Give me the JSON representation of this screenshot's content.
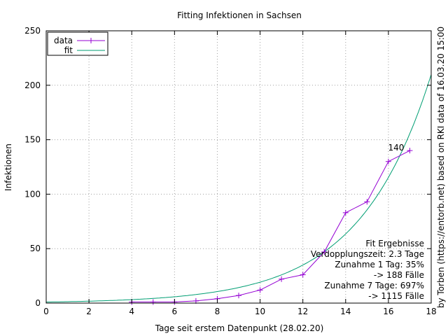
{
  "chart_data": {
    "type": "line",
    "title": "Fitting Infektionen in Sachsen",
    "xlabel": "Tage seit erstem Datenpunkt (28.02.20)",
    "ylabel": "Infektionen",
    "side_label": "by Torben (https://entorb.net) based on RKI data of 16.03.20 15:00",
    "xlim": [
      0,
      18
    ],
    "ylim": [
      0,
      250
    ],
    "x_ticks": [
      0,
      2,
      4,
      6,
      8,
      10,
      12,
      14,
      16,
      18
    ],
    "y_ticks": [
      0,
      50,
      100,
      150,
      200,
      250
    ],
    "grid": true,
    "legend_position": "top-left",
    "series": [
      {
        "name": "data",
        "color": "#9400d3",
        "marker": "plus",
        "x": [
          4,
          5,
          6,
          7,
          8,
          9,
          10,
          11,
          12,
          13,
          14,
          15,
          16,
          17
        ],
        "y": [
          1,
          1,
          1,
          2,
          4,
          7,
          12,
          22,
          26,
          47,
          83,
          93,
          130,
          140
        ]
      },
      {
        "name": "fit",
        "color": "#009e73",
        "model": "exponential",
        "x": [
          0,
          2,
          4,
          6,
          8,
          10,
          12,
          13,
          14,
          15,
          16,
          17,
          18
        ],
        "y": [
          0.97,
          1.77,
          3.2,
          5.8,
          10.6,
          19.2,
          34.9,
          47,
          63.5,
          85.6,
          115.6,
          156,
          210
        ]
      }
    ],
    "annotations": [
      {
        "text": "140",
        "x": 17,
        "y": 140
      }
    ],
    "results_box": {
      "lines": [
        "Fit Ergebnisse",
        "Verdopplungszeit: 2.3 Tage",
        "Zunahme 1 Tag: 35%",
        "-> 188 Fälle",
        "Zunahme 7 Tage: 697%",
        "-> 1115 Fälle"
      ]
    }
  }
}
